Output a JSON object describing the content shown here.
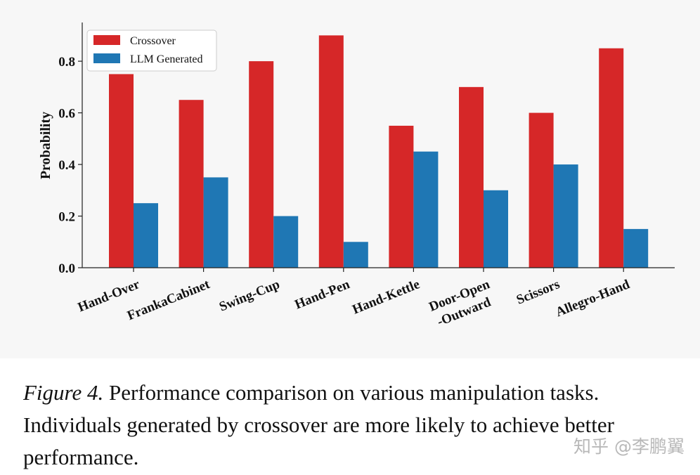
{
  "chart_data": {
    "type": "bar",
    "ylabel": "Probability",
    "xlabel": "",
    "ylim": [
      0,
      0.95
    ],
    "yticks": [
      "0.0",
      "0.2",
      "0.4",
      "0.6",
      "0.8"
    ],
    "categories": [
      [
        "Hand-Over"
      ],
      [
        "FrankaCabinet"
      ],
      [
        "Swing-Cup"
      ],
      [
        "Hand-Pen"
      ],
      [
        "Hand-Kettle"
      ],
      [
        "Door-Open",
        "-Outward"
      ],
      [
        "Scissors"
      ],
      [
        "Allegro-Hand"
      ]
    ],
    "series": [
      {
        "name": "Crossover",
        "color": "#d62728",
        "values": [
          0.75,
          0.65,
          0.8,
          0.9,
          0.55,
          0.7,
          0.6,
          0.85
        ]
      },
      {
        "name": "LLM Generated",
        "color": "#1f77b4",
        "values": [
          0.25,
          0.35,
          0.2,
          0.1,
          0.45,
          0.3,
          0.4,
          0.15
        ]
      }
    ],
    "legend_position": "top-left",
    "grid": false
  },
  "caption": {
    "figure_label": "Figure 4.",
    "text": " Performance comparison on various manipulation tasks. Individuals generated by crossover are more likely to achieve better performance."
  },
  "watermark": "知乎 @李鹏翼"
}
